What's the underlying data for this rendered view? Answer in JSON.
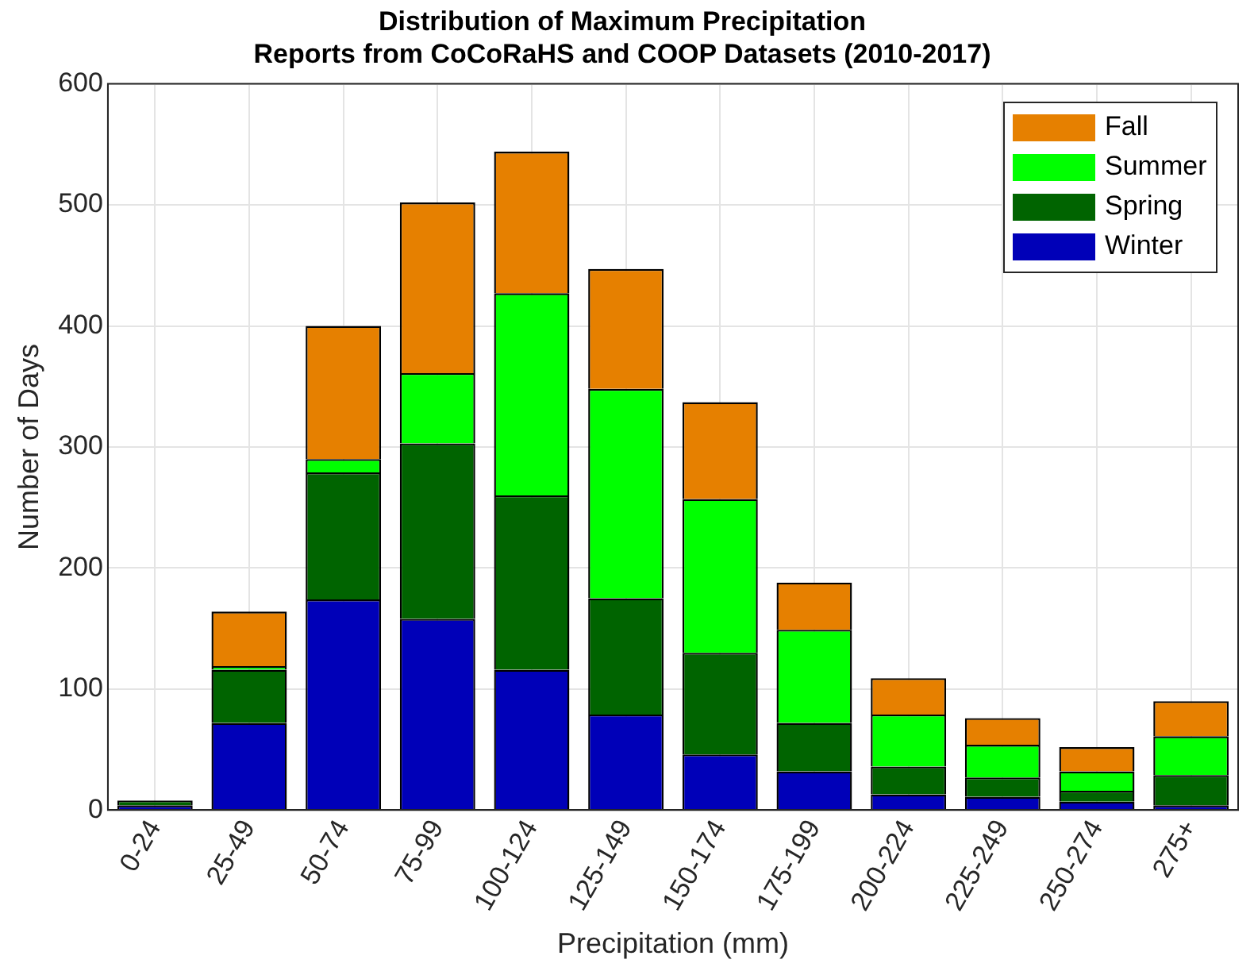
{
  "chart_data": {
    "type": "bar",
    "stacked": true,
    "title": "Distribution of Maximum Precipitation\nReports from CoCoRaHS and COOP Datasets (2010-2017)",
    "xlabel": "Precipitation (mm)",
    "ylabel": "Number of Days",
    "categories": [
      "0-24",
      "25-49",
      "50-74",
      "75-99",
      "100-124",
      "125-149",
      "150-174",
      "175-199",
      "200-224",
      "225-249",
      "250-274",
      "275+"
    ],
    "series": [
      {
        "name": "Winter",
        "color": "#0000b8",
        "values": [
          4,
          72,
          174,
          158,
          116,
          79,
          46,
          32,
          13,
          11,
          7,
          4
        ]
      },
      {
        "name": "Spring",
        "color": "#006400",
        "values": [
          4,
          44,
          105,
          145,
          144,
          96,
          84,
          40,
          23,
          16,
          9,
          25
        ]
      },
      {
        "name": "Summer",
        "color": "#00ff00",
        "values": [
          0,
          3,
          11,
          58,
          167,
          173,
          127,
          77,
          43,
          27,
          16,
          32
        ]
      },
      {
        "name": "Fall",
        "color": "#e68000",
        "values": [
          0,
          45,
          110,
          141,
          117,
          99,
          80,
          39,
          30,
          22,
          20,
          29
        ]
      }
    ],
    "ylim": [
      0,
      600
    ],
    "yticks": [
      0,
      100,
      200,
      300,
      400,
      500,
      600
    ],
    "grid": true,
    "legend": "top right"
  }
}
